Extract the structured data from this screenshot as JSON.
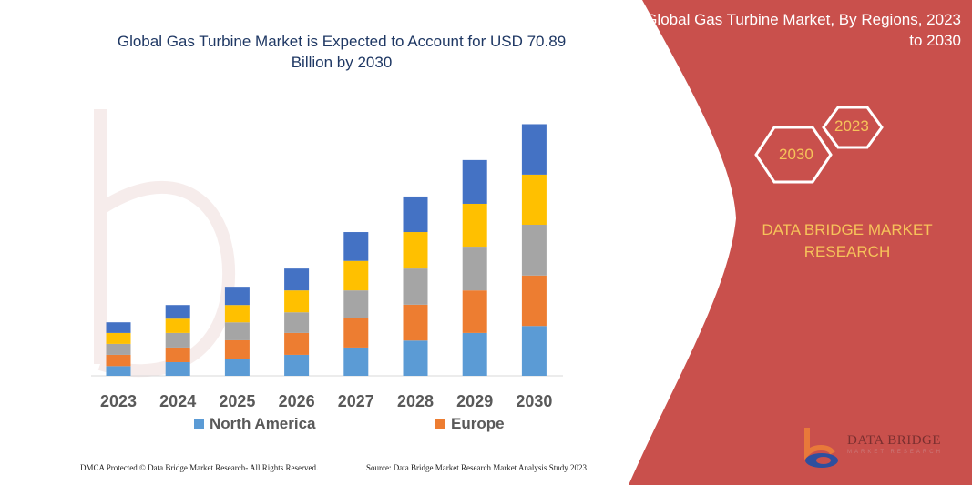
{
  "header": {
    "title": "Global Gas Turbine Market is Expected to Account for USD 70.89 Billion by 2030",
    "side_title": "Global Gas Turbine Market, By Regions, 2023 to 2030"
  },
  "badges": {
    "year_start": "2023",
    "year_end": "2030"
  },
  "brand": {
    "name": "DATA BRIDGE MARKET RESEARCH",
    "logo_text": "DATA BRIDGE",
    "logo_subtext": "MARKET RESEARCH"
  },
  "footer": {
    "left": "DMCA Protected © Data Bridge Market Research- All Rights Reserved.",
    "right": "Source: Data Bridge Market Research  Market Analysis Study 2023"
  },
  "colors": {
    "panel": "#c9504c",
    "accent_text": "#f6c35a"
  },
  "chart_data": {
    "type": "bar",
    "stacked": true,
    "title": "Global Gas Turbine Market is Expected to Account for USD 70.89 Billion by 2030",
    "xlabel": "",
    "ylabel": "",
    "y_axis_visible": false,
    "grid": false,
    "legend_placement": "bottom",
    "categories": [
      "2023",
      "2024",
      "2025",
      "2026",
      "2027",
      "2028",
      "2029",
      "2030"
    ],
    "series": [
      {
        "name": "North America",
        "color": "#5b9bd5",
        "values": [
          2.74,
          3.85,
          4.79,
          5.91,
          7.96,
          9.93,
          12.07,
          14.04
        ]
      },
      {
        "name": "Europe",
        "color": "#ed7d31",
        "values": [
          3.17,
          4.11,
          5.22,
          6.16,
          8.22,
          10.1,
          11.98,
          14.21
        ]
      },
      {
        "color": "#a5a5a5",
        "values": [
          3.08,
          4.11,
          5.05,
          5.82,
          7.88,
          10.19,
          12.33,
          14.3
        ]
      },
      {
        "color": "#ffc000",
        "values": [
          3.08,
          4.02,
          4.88,
          6.16,
          8.3,
          10.27,
          12.07,
          14.12
        ]
      },
      {
        "color": "#4472c4",
        "values": [
          3.0,
          3.85,
          5.14,
          6.16,
          8.13,
          10.02,
          12.33,
          14.21
        ]
      }
    ]
  }
}
